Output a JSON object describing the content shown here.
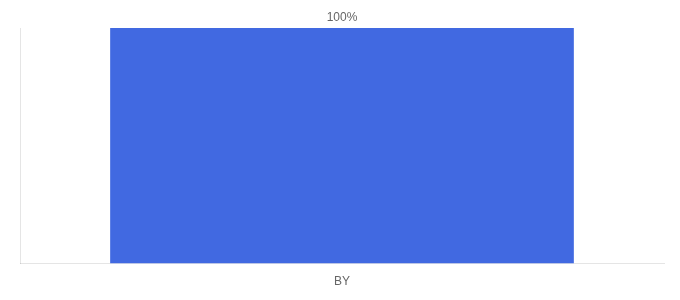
{
  "chart_data": {
    "type": "bar",
    "categories": [
      "BY"
    ],
    "values": [
      100
    ],
    "value_labels": [
      "100%"
    ],
    "color": "#4169e1",
    "ylim": [
      0,
      100
    ],
    "grid": false,
    "tick_labels": "x",
    "data_labels": true
  }
}
